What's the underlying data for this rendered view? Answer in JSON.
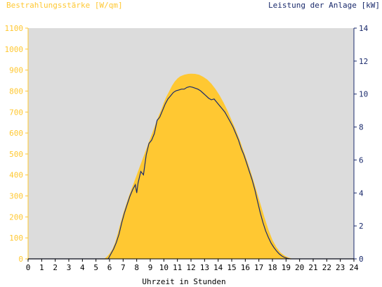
{
  "chart_data": {
    "type": "area",
    "left_axis_label": "Bestrahlungsstärke [W/qm]",
    "right_axis_label": "Leistung der Anlage [kW]",
    "xlabel": "Uhrzeit in Stunden",
    "x_ticks": [
      "0",
      "1",
      "2",
      "3",
      "4",
      "5",
      "6",
      "7",
      "8",
      "9",
      "10",
      "11",
      "12",
      "13",
      "14",
      "15",
      "16",
      "17",
      "18",
      "19",
      "20",
      "21",
      "22",
      "23",
      "24"
    ],
    "left_ticks": [
      "0",
      "100",
      "200",
      "300",
      "400",
      "500",
      "600",
      "700",
      "800",
      "900",
      "1000",
      "1100"
    ],
    "right_ticks": [
      "0",
      "2",
      "4",
      "6",
      "8",
      "10",
      "12",
      "14"
    ],
    "xlim": [
      0,
      24
    ],
    "ylim_left": [
      0,
      1100
    ],
    "ylim_right": [
      0,
      14
    ],
    "grid": false,
    "colors": {
      "irradiance_fill": "#ffc832",
      "power_line": "#1a2a6c",
      "plot_bg": "#dcdcdc",
      "left_axis_text": "#ffc832",
      "right_axis_text": "#1a2a6c",
      "x_axis_text": "#000000"
    },
    "series": [
      {
        "axis": "left",
        "points": [
          [
            0,
            0
          ],
          [
            5.6,
            0
          ],
          [
            5.8,
            10
          ],
          [
            6.0,
            25
          ],
          [
            6.2,
            45
          ],
          [
            6.4,
            75
          ],
          [
            6.6,
            120
          ],
          [
            6.8,
            170
          ],
          [
            7.0,
            215
          ],
          [
            7.2,
            255
          ],
          [
            7.4,
            295
          ],
          [
            7.6,
            330
          ],
          [
            7.8,
            365
          ],
          [
            8.0,
            400
          ],
          [
            8.2,
            435
          ],
          [
            8.4,
            470
          ],
          [
            8.6,
            505
          ],
          [
            8.8,
            540
          ],
          [
            9.0,
            575
          ],
          [
            9.2,
            610
          ],
          [
            9.4,
            645
          ],
          [
            9.6,
            680
          ],
          [
            9.8,
            710
          ],
          [
            10.0,
            745
          ],
          [
            10.2,
            775
          ],
          [
            10.4,
            800
          ],
          [
            10.6,
            825
          ],
          [
            10.8,
            845
          ],
          [
            11.0,
            860
          ],
          [
            11.2,
            870
          ],
          [
            11.5,
            878
          ],
          [
            11.8,
            882
          ],
          [
            12.0,
            883
          ],
          [
            12.3,
            882
          ],
          [
            12.6,
            878
          ],
          [
            12.9,
            868
          ],
          [
            13.2,
            855
          ],
          [
            13.5,
            835
          ],
          [
            13.8,
            810
          ],
          [
            14.1,
            780
          ],
          [
            14.4,
            745
          ],
          [
            14.7,
            705
          ],
          [
            15.0,
            660
          ],
          [
            15.3,
            615
          ],
          [
            15.6,
            565
          ],
          [
            15.9,
            510
          ],
          [
            16.2,
            455
          ],
          [
            16.5,
            395
          ],
          [
            16.8,
            330
          ],
          [
            17.1,
            265
          ],
          [
            17.4,
            200
          ],
          [
            17.7,
            140
          ],
          [
            18.0,
            90
          ],
          [
            18.3,
            55
          ],
          [
            18.6,
            30
          ],
          [
            18.9,
            15
          ],
          [
            19.2,
            6
          ],
          [
            19.5,
            0
          ],
          [
            24,
            0
          ]
        ]
      },
      {
        "axis": "right",
        "points": [
          [
            0,
            0
          ],
          [
            5.9,
            0
          ],
          [
            6.1,
            0.3
          ],
          [
            6.3,
            0.6
          ],
          [
            6.5,
            1.0
          ],
          [
            6.7,
            1.5
          ],
          [
            6.9,
            2.2
          ],
          [
            7.1,
            2.8
          ],
          [
            7.3,
            3.3
          ],
          [
            7.5,
            3.8
          ],
          [
            7.7,
            4.2
          ],
          [
            7.9,
            4.5
          ],
          [
            8.0,
            4.0
          ],
          [
            8.1,
            4.6
          ],
          [
            8.3,
            5.3
          ],
          [
            8.5,
            5.1
          ],
          [
            8.7,
            6.3
          ],
          [
            8.9,
            7.0
          ],
          [
            9.1,
            7.2
          ],
          [
            9.3,
            7.6
          ],
          [
            9.5,
            8.4
          ],
          [
            9.7,
            8.6
          ],
          [
            9.9,
            9.0
          ],
          [
            10.1,
            9.4
          ],
          [
            10.3,
            9.7
          ],
          [
            10.5,
            9.9
          ],
          [
            10.7,
            10.1
          ],
          [
            10.9,
            10.2
          ],
          [
            11.1,
            10.25
          ],
          [
            11.3,
            10.3
          ],
          [
            11.5,
            10.3
          ],
          [
            11.7,
            10.4
          ],
          [
            11.9,
            10.45
          ],
          [
            12.1,
            10.42
          ],
          [
            12.3,
            10.36
          ],
          [
            12.5,
            10.3
          ],
          [
            12.7,
            10.2
          ],
          [
            12.9,
            10.05
          ],
          [
            13.1,
            9.9
          ],
          [
            13.3,
            9.75
          ],
          [
            13.5,
            9.65
          ],
          [
            13.7,
            9.7
          ],
          [
            13.9,
            9.5
          ],
          [
            14.1,
            9.3
          ],
          [
            14.3,
            9.1
          ],
          [
            14.5,
            8.9
          ],
          [
            14.7,
            8.6
          ],
          [
            14.9,
            8.3
          ],
          [
            15.1,
            8.0
          ],
          [
            15.3,
            7.6
          ],
          [
            15.5,
            7.2
          ],
          [
            15.7,
            6.7
          ],
          [
            15.9,
            6.3
          ],
          [
            16.1,
            5.8
          ],
          [
            16.3,
            5.3
          ],
          [
            16.5,
            4.8
          ],
          [
            16.7,
            4.2
          ],
          [
            16.9,
            3.5
          ],
          [
            17.1,
            2.8
          ],
          [
            17.3,
            2.2
          ],
          [
            17.5,
            1.7
          ],
          [
            17.7,
            1.3
          ],
          [
            17.9,
            0.95
          ],
          [
            18.1,
            0.7
          ],
          [
            18.3,
            0.48
          ],
          [
            18.5,
            0.3
          ],
          [
            18.7,
            0.17
          ],
          [
            18.9,
            0.08
          ],
          [
            19.1,
            0.03
          ],
          [
            19.3,
            0
          ],
          [
            24,
            0
          ]
        ]
      }
    ]
  }
}
